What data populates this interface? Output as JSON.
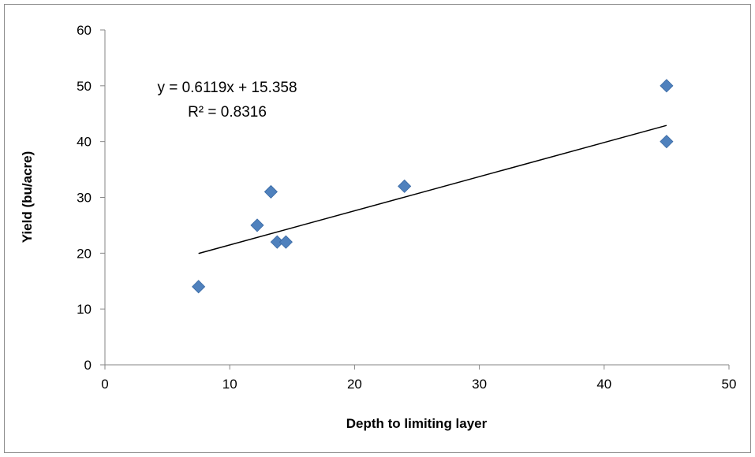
{
  "chart_data": {
    "type": "scatter",
    "title": "",
    "xlabel": "Depth to limiting layer",
    "ylabel": "Yield (bu/acre)",
    "xlim": [
      0,
      50
    ],
    "ylim": [
      0,
      60
    ],
    "x_ticks": [
      0,
      10,
      20,
      30,
      40,
      50
    ],
    "y_ticks": [
      0,
      10,
      20,
      30,
      40,
      50,
      60
    ],
    "grid": false,
    "legend": "none",
    "marker": "diamond",
    "colors": {
      "marker": "#4f81bd",
      "trendline": "#000000",
      "axis": "#868686"
    },
    "series": [
      {
        "x": [
          7.5,
          12.2,
          13.3,
          13.8,
          14.5,
          24,
          45,
          45
        ],
        "y": [
          14,
          25,
          31,
          22,
          22,
          32,
          40,
          50
        ]
      }
    ],
    "trendline": {
      "slope": 0.6119,
      "intercept": 15.358,
      "x_range": [
        7.5,
        45
      ],
      "equation": "y = 0.6119x + 15.358",
      "r_squared": "R² = 0.8316"
    }
  }
}
